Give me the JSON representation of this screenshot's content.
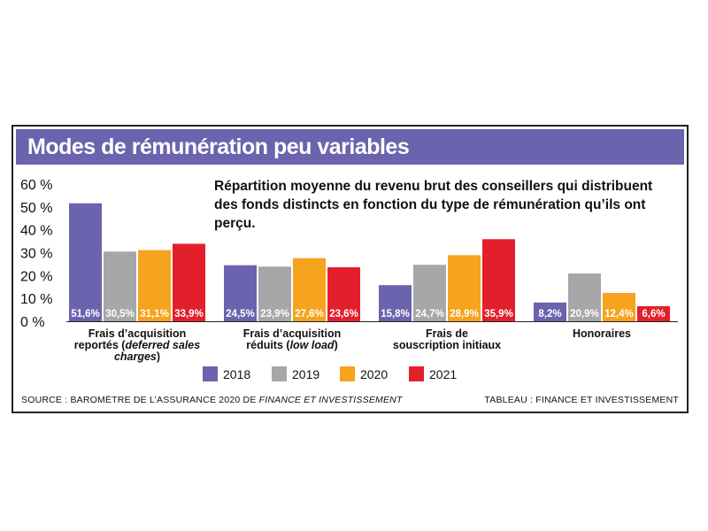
{
  "header": {
    "title": "Modes de rémunération peu variables",
    "subtitle": "Répartition moyenne du revenu brut des conseillers qui distribuent des fonds distincts en fonction du type de rémunération qu’ils ont perçu."
  },
  "footer": {
    "source_prefix": "SOURCE : BAROMÈTRE DE L’ASSURANCE 2020 DE ",
    "source_italic": "FINANCE ET INVESTISSEMENT",
    "credit": "TABLEAU : FINANCE ET INVESTISSEMENT"
  },
  "colors": {
    "banner": "#6b63ad",
    "series": [
      "#6b63ad",
      "#a7a7a9",
      "#f6a31d",
      "#e31f2c"
    ]
  },
  "chart_data": {
    "type": "bar",
    "title": "Modes de rémunération peu variables",
    "ylim": [
      0,
      60
    ],
    "yticks": [
      "60 %",
      "50 %",
      "40 %",
      "30 %",
      "20 %",
      "10 %",
      "0 %"
    ],
    "grid": false,
    "legend_position": "bottom",
    "categories": [
      {
        "lines": [
          [
            {
              "t": "Frais d’acquisition",
              "i": false
            }
          ],
          [
            {
              "t": "reportés (",
              "i": false
            },
            {
              "t": "deferred sales",
              "i": true
            }
          ],
          [
            {
              "t": "charges",
              "i": true
            },
            {
              "t": ")",
              "i": false
            }
          ]
        ]
      },
      {
        "lines": [
          [
            {
              "t": "Frais d’acquisition",
              "i": false
            }
          ],
          [
            {
              "t": "réduits (",
              "i": false
            },
            {
              "t": "low load",
              "i": true
            },
            {
              "t": ")",
              "i": false
            }
          ]
        ]
      },
      {
        "lines": [
          [
            {
              "t": "Frais de",
              "i": false
            }
          ],
          [
            {
              "t": "souscription initiaux",
              "i": false
            }
          ]
        ]
      },
      {
        "lines": [
          [
            {
              "t": "Honoraires",
              "i": false
            }
          ]
        ]
      }
    ],
    "series": [
      {
        "name": "2018",
        "values": [
          51.6,
          24.5,
          15.8,
          8.2
        ],
        "labels": [
          "51,6%",
          "24,5%",
          "15,8%",
          "8,2%"
        ]
      },
      {
        "name": "2019",
        "values": [
          30.5,
          23.9,
          24.7,
          20.9
        ],
        "labels": [
          "30,5%",
          "23,9%",
          "24,7%",
          "20,9%"
        ]
      },
      {
        "name": "2020",
        "values": [
          31.1,
          27.6,
          28.9,
          12.4
        ],
        "labels": [
          "31,1%",
          "27,6%",
          "28,9%",
          "12,4%"
        ]
      },
      {
        "name": "2021",
        "values": [
          33.9,
          23.6,
          35.9,
          6.6
        ],
        "labels": [
          "33,9%",
          "23,6%",
          "35,9%",
          "6,6%"
        ]
      }
    ]
  }
}
